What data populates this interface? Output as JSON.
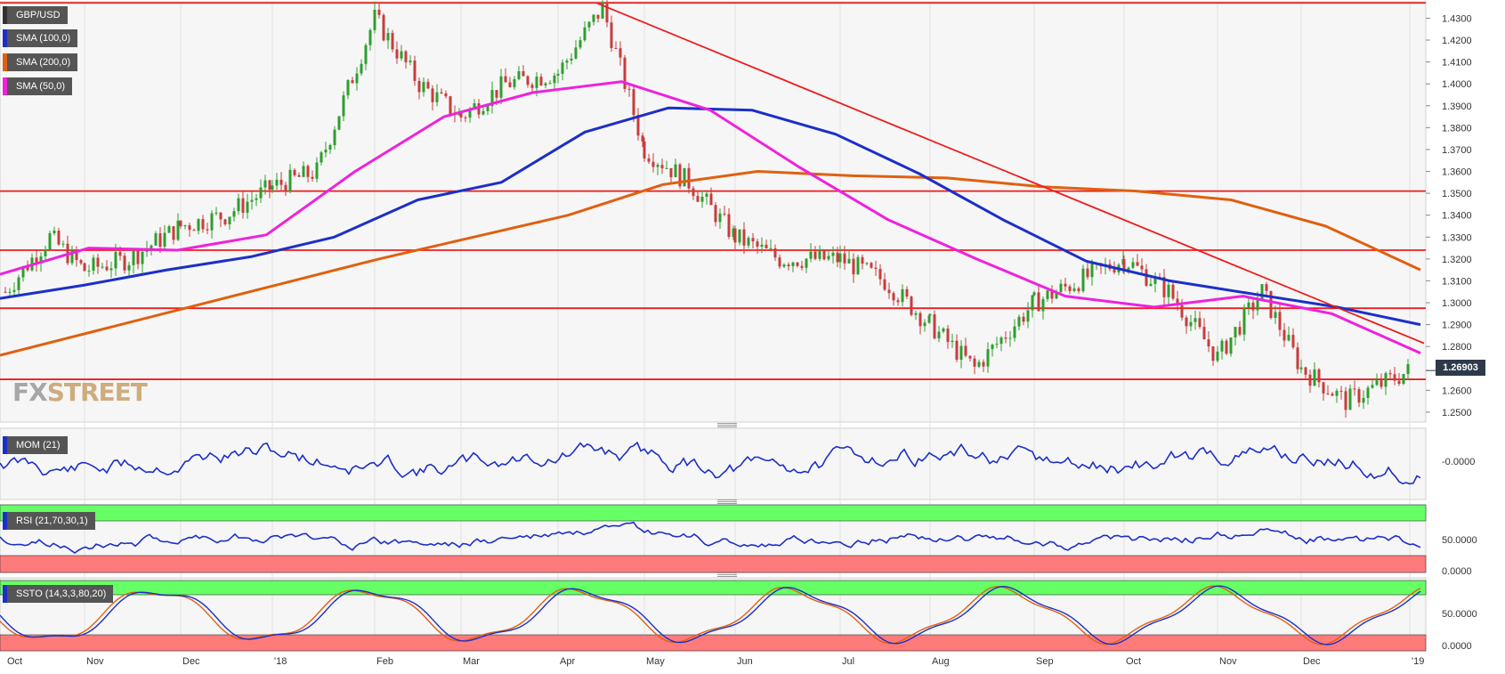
{
  "labels": {
    "symbol": "GBP/USD",
    "sma100": "SMA (100,0)",
    "sma200": "SMA (200,0)",
    "sma50": "SMA (50,0)",
    "mom": "MOM (21)",
    "rsi": "RSI (21,70,30,1)",
    "ssto": "SSTO (14,3,3,80,20)",
    "last_price": "1.26903",
    "logo_fx": "FX",
    "logo_street": "STREET"
  },
  "colors": {
    "up": "#2e9e2e",
    "down": "#c83c3c",
    "sma100": "#1c2fc8",
    "sma200": "#e06010",
    "sma50": "#ee22dd",
    "support_resistance": "#ee1c1c",
    "indicator": "#1c2fc8",
    "stoch_signal": "#e06010",
    "overbought": "#66ff66",
    "oversold": "#ff7b7b",
    "label_bg": "#555555",
    "sma100_label": "#1c2fc8",
    "sma200_label": "#e06010",
    "sma50_label": "#ee22dd"
  },
  "chart_data": {
    "type": "candlestick",
    "symbol": "GBP/USD",
    "x_ticks": [
      "Oct",
      "Nov",
      "Dec",
      "'18",
      "Feb",
      "Mar",
      "Apr",
      "May",
      "Jun",
      "Jul",
      "Aug",
      "Sep",
      "Oct",
      "Nov",
      "Dec",
      "'19"
    ],
    "price_axis": {
      "ticks": [
        "1.4300",
        "1.4200",
        "1.4100",
        "1.4000",
        "1.3900",
        "1.3800",
        "1.3700",
        "1.3600",
        "1.3500",
        "1.3400",
        "1.3300",
        "1.3200",
        "1.3100",
        "1.3000",
        "1.2900",
        "1.2800",
        "1.2600",
        "1.2500"
      ],
      "ylim": [
        1.2455,
        1.4375
      ]
    },
    "last_price": 1.26903,
    "horizontal_levels": [
      1.437,
      1.351,
      1.324,
      1.2975,
      1.265
    ],
    "trendline": [
      {
        "x": "Apr",
        "y": 1.437
      },
      {
        "x": "'19",
        "y": 1.2815
      }
    ],
    "price_path": [
      [
        "Oct",
        1.305
      ],
      [
        "Oct",
        1.33
      ],
      [
        "Nov",
        1.315
      ],
      [
        "Nov",
        1.32
      ],
      [
        "Dec",
        1.335
      ],
      [
        "Dec",
        1.34
      ],
      [
        "'18",
        1.353
      ],
      [
        "'18",
        1.36
      ],
      [
        "Feb",
        1.43
      ],
      [
        "Feb",
        1.4
      ],
      [
        "Mar",
        1.385
      ],
      [
        "Mar",
        1.4
      ],
      [
        "Apr",
        1.405
      ],
      [
        "Apr",
        1.435
      ],
      [
        "May",
        1.37
      ],
      [
        "May",
        1.355
      ],
      [
        "Jun",
        1.33
      ],
      [
        "Jun",
        1.32
      ],
      [
        "Jul",
        1.32
      ],
      [
        "Jul",
        1.31
      ],
      [
        "Aug",
        1.29
      ],
      [
        "Aug",
        1.27
      ],
      [
        "Sep",
        1.3
      ],
      [
        "Sep",
        1.31
      ],
      [
        "Oct",
        1.32
      ],
      [
        "Oct",
        1.305
      ],
      [
        "Nov",
        1.275
      ],
      [
        "Nov",
        1.305
      ],
      [
        "Dec",
        1.27
      ],
      [
        "Dec",
        1.255
      ],
      [
        "'19",
        1.269
      ]
    ],
    "series": [
      {
        "name": "SMA (100,0)",
        "values": [
          1.302,
          1.308,
          1.315,
          1.321,
          1.33,
          1.347,
          1.355,
          1.378,
          1.389,
          1.388,
          1.377,
          1.359,
          1.338,
          1.319,
          1.31,
          1.304,
          1.298,
          1.29
        ]
      },
      {
        "name": "SMA (200,0)",
        "values": [
          1.276,
          1.287,
          1.298,
          1.309,
          1.32,
          1.33,
          1.34,
          1.354,
          1.36,
          1.358,
          1.357,
          1.353,
          1.351,
          1.347,
          1.335,
          1.315
        ]
      },
      {
        "name": "SMA (50,0)",
        "values": [
          1.313,
          1.325,
          1.324,
          1.331,
          1.36,
          1.385,
          1.396,
          1.401,
          1.388,
          1.362,
          1.338,
          1.32,
          1.303,
          1.298,
          1.303,
          1.295,
          1.277
        ]
      }
    ],
    "indicators": {
      "mom": {
        "ticks": [
          "-0.0000"
        ]
      },
      "rsi": {
        "ticks": [
          "50.0000",
          "0.0000"
        ]
      },
      "ssto": {
        "ticks": [
          "50.0000",
          "0.0000"
        ]
      }
    }
  }
}
